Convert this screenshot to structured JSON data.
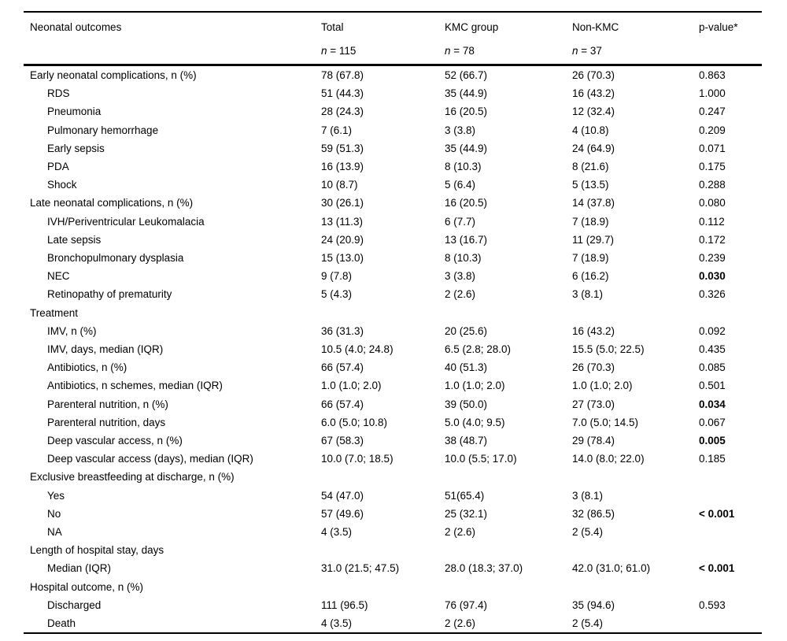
{
  "table": {
    "header": {
      "label_column": "Neonatal outcomes",
      "groups": [
        {
          "title": "Total",
          "n_symbol": "n",
          "n_value": " = 115"
        },
        {
          "title": "KMC group",
          "n_symbol": "n",
          "n_value": " = 78"
        },
        {
          "title": "Non-KMC",
          "n_symbol": "n",
          "n_value": " = 37"
        }
      ],
      "p_value_label": "p-value*"
    },
    "rows": [
      {
        "label": "Early neonatal complications, n (%)",
        "indent": 0,
        "total": "78 (67.8)",
        "kmc": "52 (66.7)",
        "non_kmc": "26 (70.3)",
        "p": "0.863",
        "p_bold": false
      },
      {
        "label": "RDS",
        "indent": 1,
        "total": "51 (44.3)",
        "kmc": "35 (44.9)",
        "non_kmc": "16 (43.2)",
        "p": "1.000",
        "p_bold": false
      },
      {
        "label": "Pneumonia",
        "indent": 1,
        "total": "28 (24.3)",
        "kmc": "16 (20.5)",
        "non_kmc": "12 (32.4)",
        "p": "0.247",
        "p_bold": false
      },
      {
        "label": "Pulmonary hemorrhage",
        "indent": 1,
        "total": "7 (6.1)",
        "kmc": "3 (3.8)",
        "non_kmc": "4 (10.8)",
        "p": "0.209",
        "p_bold": false
      },
      {
        "label": "Early sepsis",
        "indent": 1,
        "total": "59 (51.3)",
        "kmc": "35 (44.9)",
        "non_kmc": "24 (64.9)",
        "p": "0.071",
        "p_bold": false
      },
      {
        "label": "PDA",
        "indent": 1,
        "total": "16 (13.9)",
        "kmc": "8 (10.3)",
        "non_kmc": "8 (21.6)",
        "p": "0.175",
        "p_bold": false
      },
      {
        "label": "Shock",
        "indent": 1,
        "total": "10 (8.7)",
        "kmc": "5 (6.4)",
        "non_kmc": "5 (13.5)",
        "p": "0.288",
        "p_bold": false
      },
      {
        "label": "Late neonatal complications, n (%)",
        "indent": 0,
        "total": "30 (26.1)",
        "kmc": "16 (20.5)",
        "non_kmc": "14 (37.8)",
        "p": "0.080",
        "p_bold": false
      },
      {
        "label": "IVH/Periventricular Leukomalacia",
        "indent": 1,
        "total": "13 (11.3)",
        "kmc": "6 (7.7)",
        "non_kmc": "7 (18.9)",
        "p": "0.112",
        "p_bold": false
      },
      {
        "label": "Late sepsis",
        "indent": 1,
        "total": "24 (20.9)",
        "kmc": "13 (16.7)",
        "non_kmc": "11 (29.7)",
        "p": "0.172",
        "p_bold": false
      },
      {
        "label": "Bronchopulmonary dysplasia",
        "indent": 1,
        "total": "15 (13.0)",
        "kmc": "8 (10.3)",
        "non_kmc": "7 (18.9)",
        "p": "0.239",
        "p_bold": false
      },
      {
        "label": "NEC",
        "indent": 1,
        "total": "9 (7.8)",
        "kmc": "3 (3.8)",
        "non_kmc": "6 (16.2)",
        "p": "0.030",
        "p_bold": true
      },
      {
        "label": "Retinopathy of prematurity",
        "indent": 1,
        "total": "5 (4.3)",
        "kmc": "2 (2.6)",
        "non_kmc": "3 (8.1)",
        "p": "0.326",
        "p_bold": false
      },
      {
        "label": "Treatment",
        "indent": 0,
        "total": "",
        "kmc": "",
        "non_kmc": "",
        "p": "",
        "p_bold": false
      },
      {
        "label": "IMV, n (%)",
        "indent": 1,
        "total": "36 (31.3)",
        "kmc": "20 (25.6)",
        "non_kmc": "16 (43.2)",
        "p": "0.092",
        "p_bold": false
      },
      {
        "label": "IMV, days, median (IQR)",
        "indent": 1,
        "total": "10.5 (4.0; 24.8)",
        "kmc": "6.5 (2.8; 28.0)",
        "non_kmc": "15.5 (5.0; 22.5)",
        "p": "0.435",
        "p_bold": false
      },
      {
        "label": "Antibiotics, n (%)",
        "indent": 1,
        "total": "66 (57.4)",
        "kmc": "40 (51.3)",
        "non_kmc": "26 (70.3)",
        "p": "0.085",
        "p_bold": false
      },
      {
        "label": "Antibiotics, n schemes, median (IQR)",
        "indent": 1,
        "total": "1.0 (1.0; 2.0)",
        "kmc": "1.0 (1.0; 2.0)",
        "non_kmc": "1.0 (1.0; 2.0)",
        "p": "0.501",
        "p_bold": false
      },
      {
        "label": "Parenteral nutrition, n (%)",
        "indent": 1,
        "total": "66 (57.4)",
        "kmc": "39 (50.0)",
        "non_kmc": "27 (73.0)",
        "p": "0.034",
        "p_bold": true
      },
      {
        "label": "Parenteral nutrition, days",
        "indent": 1,
        "total": "6.0 (5.0; 10.8)",
        "kmc": "5.0 (4.0; 9.5)",
        "non_kmc": "7.0 (5.0; 14.5)",
        "p": "0.067",
        "p_bold": false
      },
      {
        "label": "Deep vascular access, n (%)",
        "indent": 1,
        "total": "67 (58.3)",
        "kmc": "38 (48.7)",
        "non_kmc": "29 (78.4)",
        "p": "0.005",
        "p_bold": true
      },
      {
        "label": "Deep vascular access (days), median (IQR)",
        "indent": 1,
        "total": "10.0 (7.0; 18.5)",
        "kmc": "10.0 (5.5; 17.0)",
        "non_kmc": "14.0 (8.0; 22.0)",
        "p": "0.185",
        "p_bold": false
      },
      {
        "label": "Exclusive breastfeeding at discharge, n (%)",
        "indent": 0,
        "total": "",
        "kmc": "",
        "non_kmc": "",
        "p": "",
        "p_bold": false
      },
      {
        "label": "Yes",
        "indent": 1,
        "total": "54 (47.0)",
        "kmc": "51(65.4)",
        "non_kmc": "3 (8.1)",
        "p": "",
        "p_bold": false
      },
      {
        "label": "No",
        "indent": 1,
        "total": "57 (49.6)",
        "kmc": "25 (32.1)",
        "non_kmc": "32 (86.5)",
        "p": "< 0.001",
        "p_bold": true
      },
      {
        "label": "NA",
        "indent": 1,
        "total": "4 (3.5)",
        "kmc": "2 (2.6)",
        "non_kmc": "2 (5.4)",
        "p": "",
        "p_bold": false
      },
      {
        "label": "Length of hospital stay, days",
        "indent": 0,
        "total": "",
        "kmc": "",
        "non_kmc": "",
        "p": "",
        "p_bold": false
      },
      {
        "label": "Median (IQR)",
        "indent": 1,
        "total": "31.0 (21.5; 47.5)",
        "kmc": "28.0 (18.3; 37.0)",
        "non_kmc": "42.0 (31.0; 61.0)",
        "p": "< 0.001",
        "p_bold": true
      },
      {
        "label": "Hospital outcome, n (%)",
        "indent": 0,
        "total": "",
        "kmc": "",
        "non_kmc": "",
        "p": "",
        "p_bold": false
      },
      {
        "label": "Discharged",
        "indent": 1,
        "total": "111 (96.5)",
        "kmc": "76 (97.4)",
        "non_kmc": "35 (94.6)",
        "p": "0.593",
        "p_bold": false
      },
      {
        "label": "Death",
        "indent": 1,
        "total": "4 (3.5)",
        "kmc": "2 (2.6)",
        "non_kmc": "2 (5.4)",
        "p": "",
        "p_bold": false
      }
    ]
  }
}
